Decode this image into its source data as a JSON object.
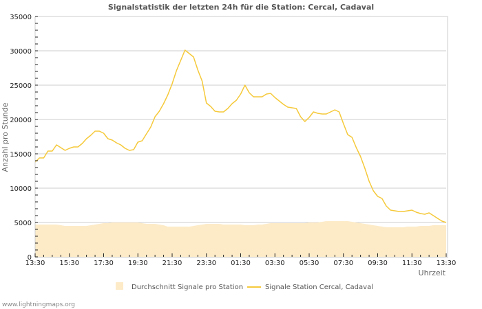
{
  "header": {
    "title": "Signalstatistik der letzten 24h für die Station: Cercal, Cadaval"
  },
  "footer": {
    "site": "www.lightningmaps.org"
  },
  "colors": {
    "line": "#f5c93a",
    "area": "#fdebc8",
    "grid": "#cccccc",
    "frame": "#cccccc"
  },
  "chart_data": {
    "type": "line",
    "title": "Signalstatistik der letzten 24h für die Station: Cercal, Cadaval",
    "xlabel": "Uhrzeit",
    "ylabel": "Anzahl pro Stunde",
    "ylim": [
      0,
      35000
    ],
    "yticks": [
      0,
      5000,
      10000,
      15000,
      20000,
      25000,
      30000,
      35000
    ],
    "xticks": [
      "13:30",
      "15:30",
      "17:30",
      "19:30",
      "21:30",
      "23:30",
      "01:30",
      "03:30",
      "05:30",
      "07:30",
      "09:30",
      "11:30",
      "13:30"
    ],
    "grid": true,
    "legend_position": "bottom",
    "x_hours_from_start": [
      0,
      0.25,
      0.5,
      0.75,
      1.0,
      1.25,
      1.5,
      1.75,
      2.0,
      2.25,
      2.5,
      2.75,
      3.0,
      3.25,
      3.5,
      3.75,
      4.0,
      4.25,
      4.5,
      4.75,
      5.0,
      5.25,
      5.5,
      5.75,
      6.0,
      6.25,
      6.5,
      6.75,
      7.0,
      7.25,
      7.5,
      7.75,
      8.0,
      8.25,
      8.5,
      8.75,
      9.0,
      9.25,
      9.5,
      9.75,
      10.0,
      10.25,
      10.5,
      10.75,
      11.0,
      11.25,
      11.5,
      11.75,
      12.0,
      12.25,
      12.5,
      12.75,
      13.0,
      13.25,
      13.5,
      13.75,
      14.0,
      14.25,
      14.5,
      14.75,
      15.0,
      15.25,
      15.5,
      15.75,
      16.0,
      16.25,
      16.5,
      16.75,
      17.0,
      17.25,
      17.5,
      17.75,
      18.0,
      18.25,
      18.5,
      18.75,
      19.0,
      19.25,
      19.5,
      19.75,
      20.0,
      20.25,
      20.5,
      20.75,
      21.0,
      21.25,
      21.5,
      21.75,
      22.0,
      22.25,
      22.5,
      22.75,
      23.0,
      23.25,
      23.5,
      23.75,
      24.0
    ],
    "series": [
      {
        "name": "Durchschnitt Signale pro Station",
        "style": "area",
        "values": [
          4700,
          4700,
          4700,
          4700,
          4700,
          4700,
          4600,
          4500,
          4500,
          4500,
          4500,
          4500,
          4500,
          4600,
          4700,
          4800,
          4900,
          4900,
          5000,
          5000,
          5000,
          5000,
          5000,
          5000,
          5000,
          4900,
          4800,
          4800,
          4800,
          4700,
          4600,
          4400,
          4400,
          4400,
          4400,
          4400,
          4400,
          4500,
          4600,
          4700,
          4800,
          4800,
          4800,
          4800,
          4700,
          4700,
          4700,
          4700,
          4700,
          4600,
          4600,
          4600,
          4700,
          4700,
          4800,
          4900,
          4900,
          4900,
          4900,
          4900,
          4900,
          4900,
          4900,
          4900,
          5000,
          5000,
          5000,
          5100,
          5200,
          5200,
          5200,
          5200,
          5200,
          5200,
          5100,
          5000,
          4900,
          4800,
          4700,
          4600,
          4500,
          4400,
          4300,
          4300,
          4300,
          4300,
          4300,
          4400,
          4400,
          4400,
          4500,
          4500,
          4500,
          4600,
          4600,
          4600,
          4600
        ]
      },
      {
        "name": "Signale Station Cercal, Cadaval",
        "style": "line",
        "values": [
          13800,
          14400,
          14400,
          15400,
          15400,
          16300,
          15900,
          15500,
          15800,
          16000,
          16000,
          16500,
          17200,
          17700,
          18300,
          18300,
          18000,
          17200,
          17000,
          16600,
          16300,
          15800,
          15500,
          15600,
          16700,
          16900,
          17900,
          18900,
          20400,
          21200,
          22300,
          23600,
          25200,
          27100,
          28600,
          30100,
          29600,
          29100,
          27200,
          25600,
          22400,
          21900,
          21200,
          21100,
          21100,
          21600,
          22300,
          22800,
          23700,
          25000,
          23900,
          23300,
          23300,
          23300,
          23700,
          23800,
          23200,
          22700,
          22200,
          21800,
          21700,
          21600,
          20400,
          19700,
          20300,
          21100,
          20900,
          20800,
          20800,
          21100,
          21400,
          21100,
          19400,
          17800,
          17400,
          15900,
          14600,
          12900,
          11000,
          9600,
          8800,
          8500,
          7400,
          6800,
          6700,
          6600,
          6600,
          6700,
          6800,
          6500,
          6300,
          6200,
          6400,
          6000,
          5600,
          5200,
          5000
        ]
      }
    ]
  },
  "legend": {
    "area_label": "Durchschnitt Signale pro Station",
    "line_label": "Signale Station Cercal, Cadaval"
  },
  "axes": {
    "x_label": "Uhrzeit",
    "y_label": "Anzahl pro Stunde"
  }
}
